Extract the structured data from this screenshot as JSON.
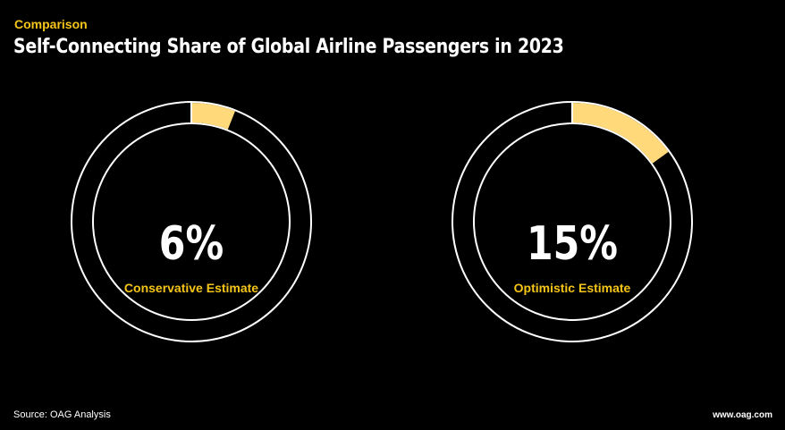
{
  "header": {
    "kicker": "Comparison",
    "title": "Self-Connecting Share of Global Airline Passengers in 2023"
  },
  "chart_data": [
    {
      "type": "pie",
      "variant": "donut",
      "value": 6,
      "max": 100,
      "value_label": "6%",
      "label": "Conservative Estimate"
    },
    {
      "type": "pie",
      "variant": "donut",
      "value": 15,
      "max": 100,
      "value_label": "15%",
      "label": "Optimistic Estimate"
    }
  ],
  "colors": {
    "accent": "#ffd97a",
    "accent_text": "#f5c518",
    "ring": "#ffffff",
    "background": "#000000"
  },
  "footer": {
    "source": "Source: OAG Analysis",
    "site": "www.oag.com"
  }
}
